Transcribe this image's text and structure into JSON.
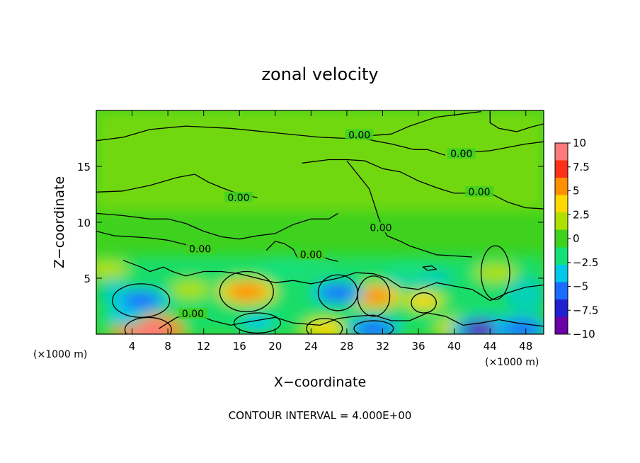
{
  "chart_data": {
    "type": "heatmap",
    "title": "zonal velocity",
    "xlabel": "X−coordinate",
    "ylabel": "Z−coordinate",
    "x_unit": "(×1000 m)",
    "y_unit": "(×1000 m)",
    "xlim": [
      0,
      50
    ],
    "ylim": [
      0,
      20
    ],
    "xticks": [
      4,
      8,
      12,
      16,
      20,
      24,
      28,
      32,
      36,
      40,
      44,
      48
    ],
    "xtick_labels": [
      "4",
      "8",
      "12",
      "16",
      "20",
      "24",
      "28",
      "32",
      "36",
      "40",
      "44",
      "48"
    ],
    "yticks": [
      5,
      10,
      15
    ],
    "ytick_labels": [
      "5",
      "10",
      "15"
    ],
    "colorbar": {
      "min": -10,
      "max": 10,
      "ticks": [
        10,
        7.5,
        5,
        2.5,
        0,
        -2.5,
        -5,
        -7.5,
        -10
      ],
      "tick_labels": [
        "10",
        "7.5",
        "5",
        "2.5",
        "0",
        "−2.5",
        "−5",
        "−7.5",
        "−10"
      ],
      "colors": [
        "#6a00a8",
        "#2020d0",
        "#1a6bff",
        "#00c8e8",
        "#14e07a",
        "#3ed21e",
        "#b0e000",
        "#ffd800",
        "#ff9000",
        "#ff3018",
        "#ff7a7a"
      ]
    },
    "contour_interval_text": "CONTOUR INTERVAL = 4.000E+00",
    "contour_labels": [
      {
        "text": "0.00",
        "x": 29.4,
        "z": 17.7
      },
      {
        "text": "0.00",
        "x": 40.8,
        "z": 16.0
      },
      {
        "text": "0.00",
        "x": 15.9,
        "z": 12.1
      },
      {
        "text": "0.00",
        "x": 42.8,
        "z": 12.6
      },
      {
        "text": "0.00",
        "x": 31.8,
        "z": 9.4
      },
      {
        "text": "0.00",
        "x": 11.6,
        "z": 7.5
      },
      {
        "text": "0.00",
        "x": 24.0,
        "z": 7.0
      },
      {
        "text": "0.00",
        "x": 10.8,
        "z": 1.7
      }
    ],
    "features": [
      {
        "x": 5.8,
        "z": 0.4,
        "value": 9.0
      },
      {
        "x": 16.8,
        "z": 3.8,
        "value": 6.0
      },
      {
        "x": 31.0,
        "z": 3.4,
        "value": 5.5
      },
      {
        "x": 25.5,
        "z": 0.5,
        "value": 4.0
      },
      {
        "x": 40.5,
        "z": 0.6,
        "value": 4.0
      },
      {
        "x": 44.6,
        "z": 5.5,
        "value": 2.5
      },
      {
        "x": 36.6,
        "z": 3.0,
        "value": 3.0
      },
      {
        "x": 1.2,
        "z": 5.8,
        "value": 2.5
      },
      {
        "x": 3.0,
        "z": 1.6,
        "value": -3.0
      },
      {
        "x": 5.0,
        "z": 3.0,
        "value": -5.5
      },
      {
        "x": 27.0,
        "z": 3.7,
        "value": -5.0
      },
      {
        "x": 18.0,
        "z": 1.0,
        "value": -4.0
      },
      {
        "x": 31.0,
        "z": 0.5,
        "value": -5.5
      },
      {
        "x": 43.2,
        "z": 0.4,
        "value": -8.0
      },
      {
        "x": 47.5,
        "z": 0.5,
        "value": -6.0
      },
      {
        "x": 10.5,
        "z": 4.0,
        "value": 2.0
      },
      {
        "x": 20.5,
        "z": 5.5,
        "value": -2.5
      },
      {
        "x": 35.0,
        "z": 5.8,
        "value": -2.0
      }
    ]
  }
}
